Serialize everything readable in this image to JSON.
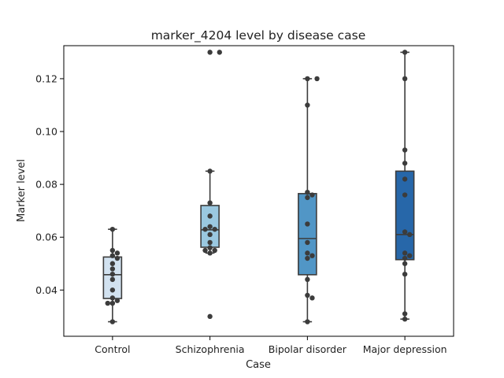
{
  "chart_data": {
    "type": "box",
    "title": "marker_4204 level by disease case",
    "xlabel": "Case",
    "ylabel": "Marker level",
    "ylim": [
      0.0225,
      0.1325
    ],
    "yticks": [
      0.04,
      0.06,
      0.08,
      0.1,
      0.12
    ],
    "ytick_labels": [
      "0.04",
      "0.06",
      "0.08",
      "0.10",
      "0.12"
    ],
    "categories": [
      "Control",
      "Schizophrenia",
      "Bipolar disorder",
      "Major depression"
    ],
    "grid": false,
    "legend": "none",
    "colors": {
      "box_fills": [
        "#d2e2f0",
        "#9ac8e0",
        "#5196c6",
        "#2767a9"
      ],
      "box_edge": "#3c3c3c",
      "points": "#3c3c3c"
    },
    "boxes": [
      {
        "q1": 0.0368,
        "median": 0.0458,
        "q3": 0.0525,
        "whisker_low": 0.028,
        "whisker_high": 0.063
      },
      {
        "q1": 0.0562,
        "median": 0.0628,
        "q3": 0.072,
        "whisker_low": 0.054,
        "whisker_high": 0.085
      },
      {
        "q1": 0.0458,
        "median": 0.0595,
        "q3": 0.0765,
        "whisker_low": 0.028,
        "whisker_high": 0.12
      },
      {
        "q1": 0.0515,
        "median": 0.061,
        "q3": 0.085,
        "whisker_low": 0.029,
        "whisker_high": 0.13
      }
    ],
    "points": [
      [
        0.063,
        0.055,
        0.054,
        0.053,
        0.052,
        0.05,
        0.048,
        0.046,
        0.044,
        0.04,
        0.037,
        0.036,
        0.035,
        0.035,
        0.028
      ],
      [
        0.13,
        0.13,
        0.085,
        0.073,
        0.068,
        0.064,
        0.063,
        0.063,
        0.061,
        0.058,
        0.056,
        0.055,
        0.055,
        0.054,
        0.03
      ],
      [
        0.12,
        0.12,
        0.11,
        0.077,
        0.076,
        0.075,
        0.065,
        0.058,
        0.054,
        0.053,
        0.052,
        0.044,
        0.038,
        0.037,
        0.028
      ],
      [
        0.13,
        0.12,
        0.093,
        0.088,
        0.082,
        0.076,
        0.062,
        0.061,
        0.054,
        0.053,
        0.052,
        0.05,
        0.046,
        0.031,
        0.029
      ]
    ]
  }
}
